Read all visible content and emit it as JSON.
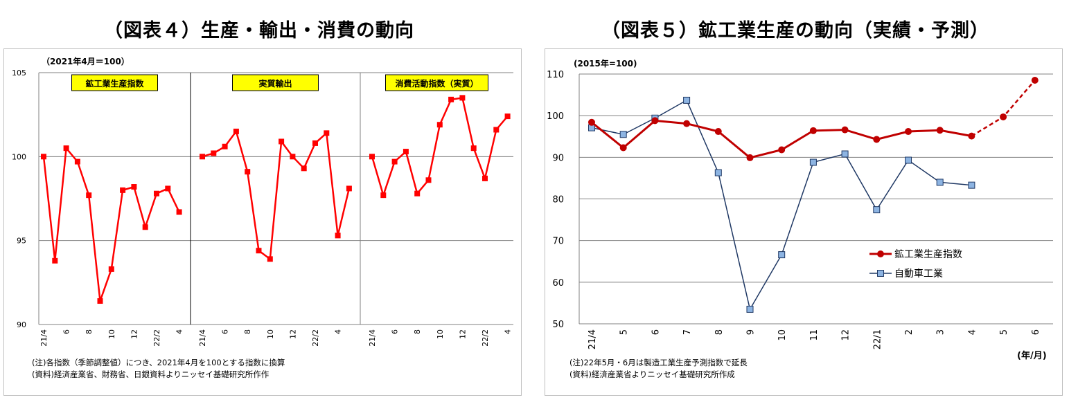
{
  "titles": {
    "left": "（図表４）生産・輸出・消費の動向",
    "right": "（図表５）鉱工業生産の動向（実績・予測）"
  },
  "chart_data": [
    {
      "type": "line",
      "unit_label": "（2021年4月＝100）",
      "ylim": [
        90,
        105
      ],
      "yticks": [
        90,
        95,
        100,
        105
      ],
      "grid": true,
      "panels": [
        {
          "name": "鉱工業生産指数",
          "x": [
            "21/4",
            "",
            "6",
            "",
            "8",
            "",
            "10",
            "",
            "12",
            "",
            "22/2",
            "",
            "4"
          ],
          "values": [
            100.0,
            93.8,
            100.5,
            99.7,
            97.7,
            91.4,
            93.3,
            98.0,
            98.2,
            95.8,
            97.8,
            98.1,
            96.7
          ]
        },
        {
          "name": "実質輸出",
          "x": [
            "21/4",
            "",
            "6",
            "",
            "8",
            "",
            "10",
            "",
            "12",
            "",
            "22/2",
            "",
            "4",
            ""
          ],
          "values": [
            100.0,
            100.2,
            100.6,
            101.5,
            99.1,
            94.4,
            93.9,
            100.9,
            100.0,
            99.3,
            100.8,
            101.4,
            95.3,
            98.1
          ]
        },
        {
          "name": "消費活動指数（実質）",
          "x": [
            "21/4",
            "",
            "6",
            "",
            "8",
            "",
            "10",
            "",
            "12",
            "",
            "22/2",
            "",
            "4"
          ],
          "values": [
            100.0,
            97.7,
            99.7,
            100.3,
            97.8,
            98.6,
            101.9,
            103.4,
            103.5,
            100.5,
            98.7,
            101.6,
            102.4
          ]
        }
      ],
      "notes": [
        "(注)各指数（季節調整値）につき、2021年4月を100とする指数に換算",
        "(資料)経済産業省、財務省、日銀資料よりニッセイ基礎研究所作作"
      ]
    },
    {
      "type": "line",
      "unit_label": "(2015年=100)",
      "x": [
        "21/4",
        "5",
        "6",
        "7",
        "8",
        "9",
        "10",
        "11",
        "12",
        "22/1",
        "2",
        "3",
        "4",
        "5",
        "6"
      ],
      "xlabel": "(年/月)",
      "ylim": [
        50,
        110
      ],
      "yticks": [
        50,
        60,
        70,
        80,
        90,
        100,
        110
      ],
      "grid": true,
      "legend": "center-right",
      "series": [
        {
          "name": "鉱工業生産指数",
          "color": "#c00000",
          "marker": "circle",
          "values": [
            98.4,
            92.3,
            98.8,
            98.1,
            96.2,
            89.9,
            91.8,
            96.4,
            96.6,
            94.3,
            96.2,
            96.5,
            95.1,
            99.7,
            108.5
          ],
          "forecast_from_index": 12
        },
        {
          "name": "自動車工業",
          "color": "#1f3864",
          "marker": "square",
          "values": [
            97.1,
            95.5,
            99.4,
            103.7,
            86.3,
            53.5,
            66.6,
            88.8,
            90.8,
            77.4,
            89.3,
            84.0,
            83.3,
            null,
            null
          ]
        }
      ],
      "notes": [
        "(注)22年5月・6月は製造工業生産予測指数で延長",
        "(資料)経済産業省よりニッセイ基礎研究所作成"
      ]
    }
  ]
}
